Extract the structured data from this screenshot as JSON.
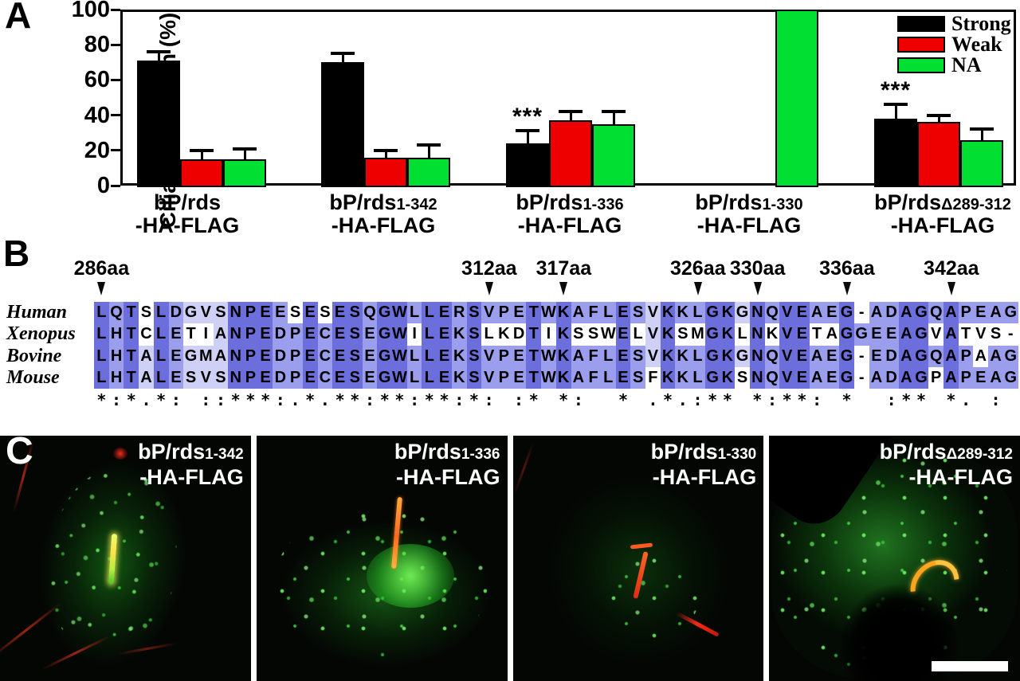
{
  "panelA": {
    "label": "A",
    "chart_data": {
      "type": "bar",
      "title": "",
      "xlabel": "",
      "ylabel": "Cilia localization (%)",
      "ylim": [
        0,
        100
      ],
      "yticks": [
        0,
        20,
        40,
        60,
        80,
        100
      ],
      "grid": false,
      "legend_position": "top-right-inside",
      "categories": [
        {
          "main": "bP/rds",
          "sub": "",
          "line2": "-HA-FLAG"
        },
        {
          "main": "bP/rds",
          "sub": "1-342",
          "line2": "-HA-FLAG"
        },
        {
          "main": "bP/rds",
          "sub": "1-336",
          "line2": "-HA-FLAG"
        },
        {
          "main": "bP/rds",
          "sub": "1-330",
          "line2": "-HA-FLAG"
        },
        {
          "main": "bP/rds",
          "sub": "Δ289-312",
          "line2": "-HA-FLAG"
        }
      ],
      "series": [
        {
          "name": "Strong",
          "color": "#000000",
          "values": [
            71,
            70,
            24,
            null,
            38
          ],
          "errors": [
            5,
            5,
            7,
            null,
            8
          ]
        },
        {
          "name": "Weak",
          "color": "#ee0000",
          "values": [
            15,
            16,
            37,
            null,
            36
          ],
          "errors": [
            5,
            4,
            5,
            null,
            4
          ]
        },
        {
          "name": "NA",
          "color": "#00df32",
          "values": [
            15,
            16,
            35,
            100,
            26
          ],
          "errors": [
            6,
            7,
            7,
            0,
            6
          ]
        }
      ],
      "significance": [
        {
          "group_index": 2,
          "series": "Strong",
          "text": "***"
        },
        {
          "group_index": 4,
          "series": "Strong",
          "text": "***"
        }
      ]
    }
  },
  "panelB": {
    "label": "B",
    "markers": [
      {
        "text": "286aa",
        "col": 1
      },
      {
        "text": "312aa",
        "col": 27
      },
      {
        "text": "317aa",
        "col": 32
      },
      {
        "text": "326aa",
        "col": 41
      },
      {
        "text": "330aa",
        "col": 45
      },
      {
        "text": "336aa",
        "col": 51
      },
      {
        "text": "342aa",
        "col": 58
      }
    ],
    "shade_colors": {
      "D": "#6b6edb",
      "M": "#9b9eec",
      "L": "#cfd0f6",
      "W": "#ffffff"
    },
    "rows": [
      {
        "species": "Human",
        "sequence": "LQTSLDGVSNPEESESESQGWLLERSVPETWKAFLESVKKLGKGNQVEAEG-ADAGQAPEAG",
        "shading": "DMDWDMLLLDDDMWDWDDMDDMDDMDMMMDMDMMMDMLDMMDDLDMDDMMDWMMDDMDMMMM"
      },
      {
        "species": "Xenopus",
        "sequence": "LHTCLETIANPEDPECESEGWILEKSLKDTIKSSWELVKSMGKLNKVETAGGEEAGVATVS-",
        "shading": "DMDWDMWWLDDDMMDMDDMDDWDDMDWWWDWDWWWDWLDWWDDWDWDDWWDMMMDDWDWWWW"
      },
      {
        "species": "Bovine",
        "sequence": "LHTALEGMANPEDPECESEGWLLEKSVPETWKAFLESVKKLGKGNQVEAEG-EDAGQAPAAG",
        "shading": "DMDLDMLLLDDDMMDMDDMDDMDDMDMMMDMDMMMDMLDMMDDLDMDDMMDWMMDDMDMWMM"
      },
      {
        "species": "Mouse",
        "sequence": "LHTALESVSNPEDPECESEGWLLEKSVPETWKAFLESFKKLGKSNQVEAEG-ADAGPAPEAG",
        "shading": "DMDLDMLLLDDDMMDMDDMDDMDDMDMMMDMDMMMDMWDMMDDWDMDDMMDWMMDDWDMMMM"
      }
    ],
    "conservation": "*:*.*: ::***:.*.**:**:**:*: :* *:  * .*.:** *:**: *  :** *. : "
  },
  "panelC": {
    "label": "C",
    "images": [
      {
        "main": "bP/rds",
        "sub": "1-342",
        "line2": "-HA-FLAG",
        "scale_bar": false
      },
      {
        "main": "bP/rds",
        "sub": "1-336",
        "line2": "-HA-FLAG",
        "scale_bar": false
      },
      {
        "main": "bP/rds",
        "sub": "1-330",
        "line2": "-HA-FLAG",
        "scale_bar": false
      },
      {
        "main": "bP/rds",
        "sub": "Δ289-312",
        "line2": "-HA-FLAG",
        "scale_bar": true
      }
    ]
  }
}
